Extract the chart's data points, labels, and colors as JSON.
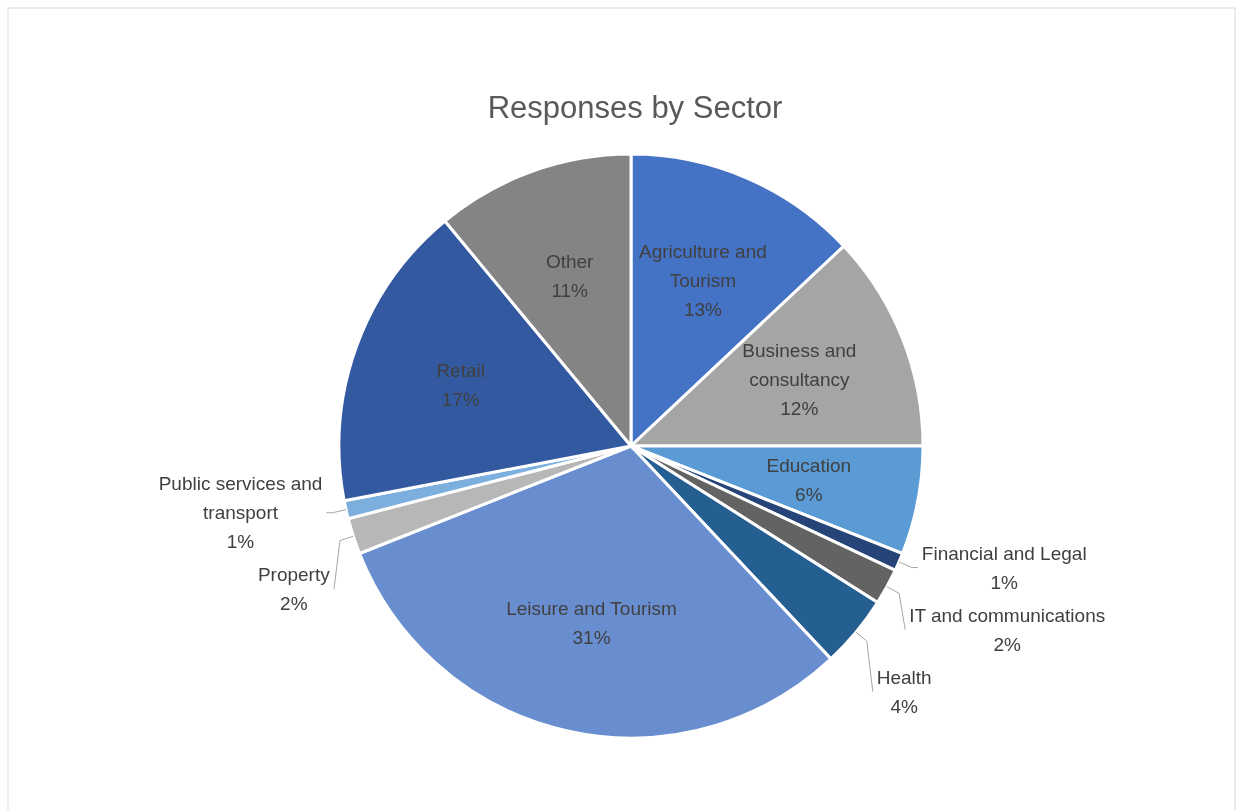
{
  "chart_data": {
    "type": "pie",
    "title": "Responses by Sector",
    "categories": [
      "Agriculture and Tourism",
      "Business and consultancy",
      "Education",
      "Financial and Legal",
      "IT and communications",
      "Health",
      "Leisure and Tourism",
      "Property",
      "Public services and transport",
      "Retail",
      "Other"
    ],
    "values": [
      13,
      12,
      6,
      1,
      2,
      4,
      31,
      2,
      1,
      17,
      11
    ],
    "value_labels": [
      "13%",
      "12%",
      "6%",
      "1%",
      "2%",
      "4%",
      "31%",
      "2%",
      "1%",
      "17%",
      "11%"
    ],
    "colors": [
      "#4472c4",
      "#a5a5a5",
      "#5b9bd5",
      "#264478",
      "#636363",
      "#255e91",
      "#698ed0",
      "#b7b7b7",
      "#7cafdd",
      "#335aa1",
      "#848484"
    ],
    "legend": false
  }
}
